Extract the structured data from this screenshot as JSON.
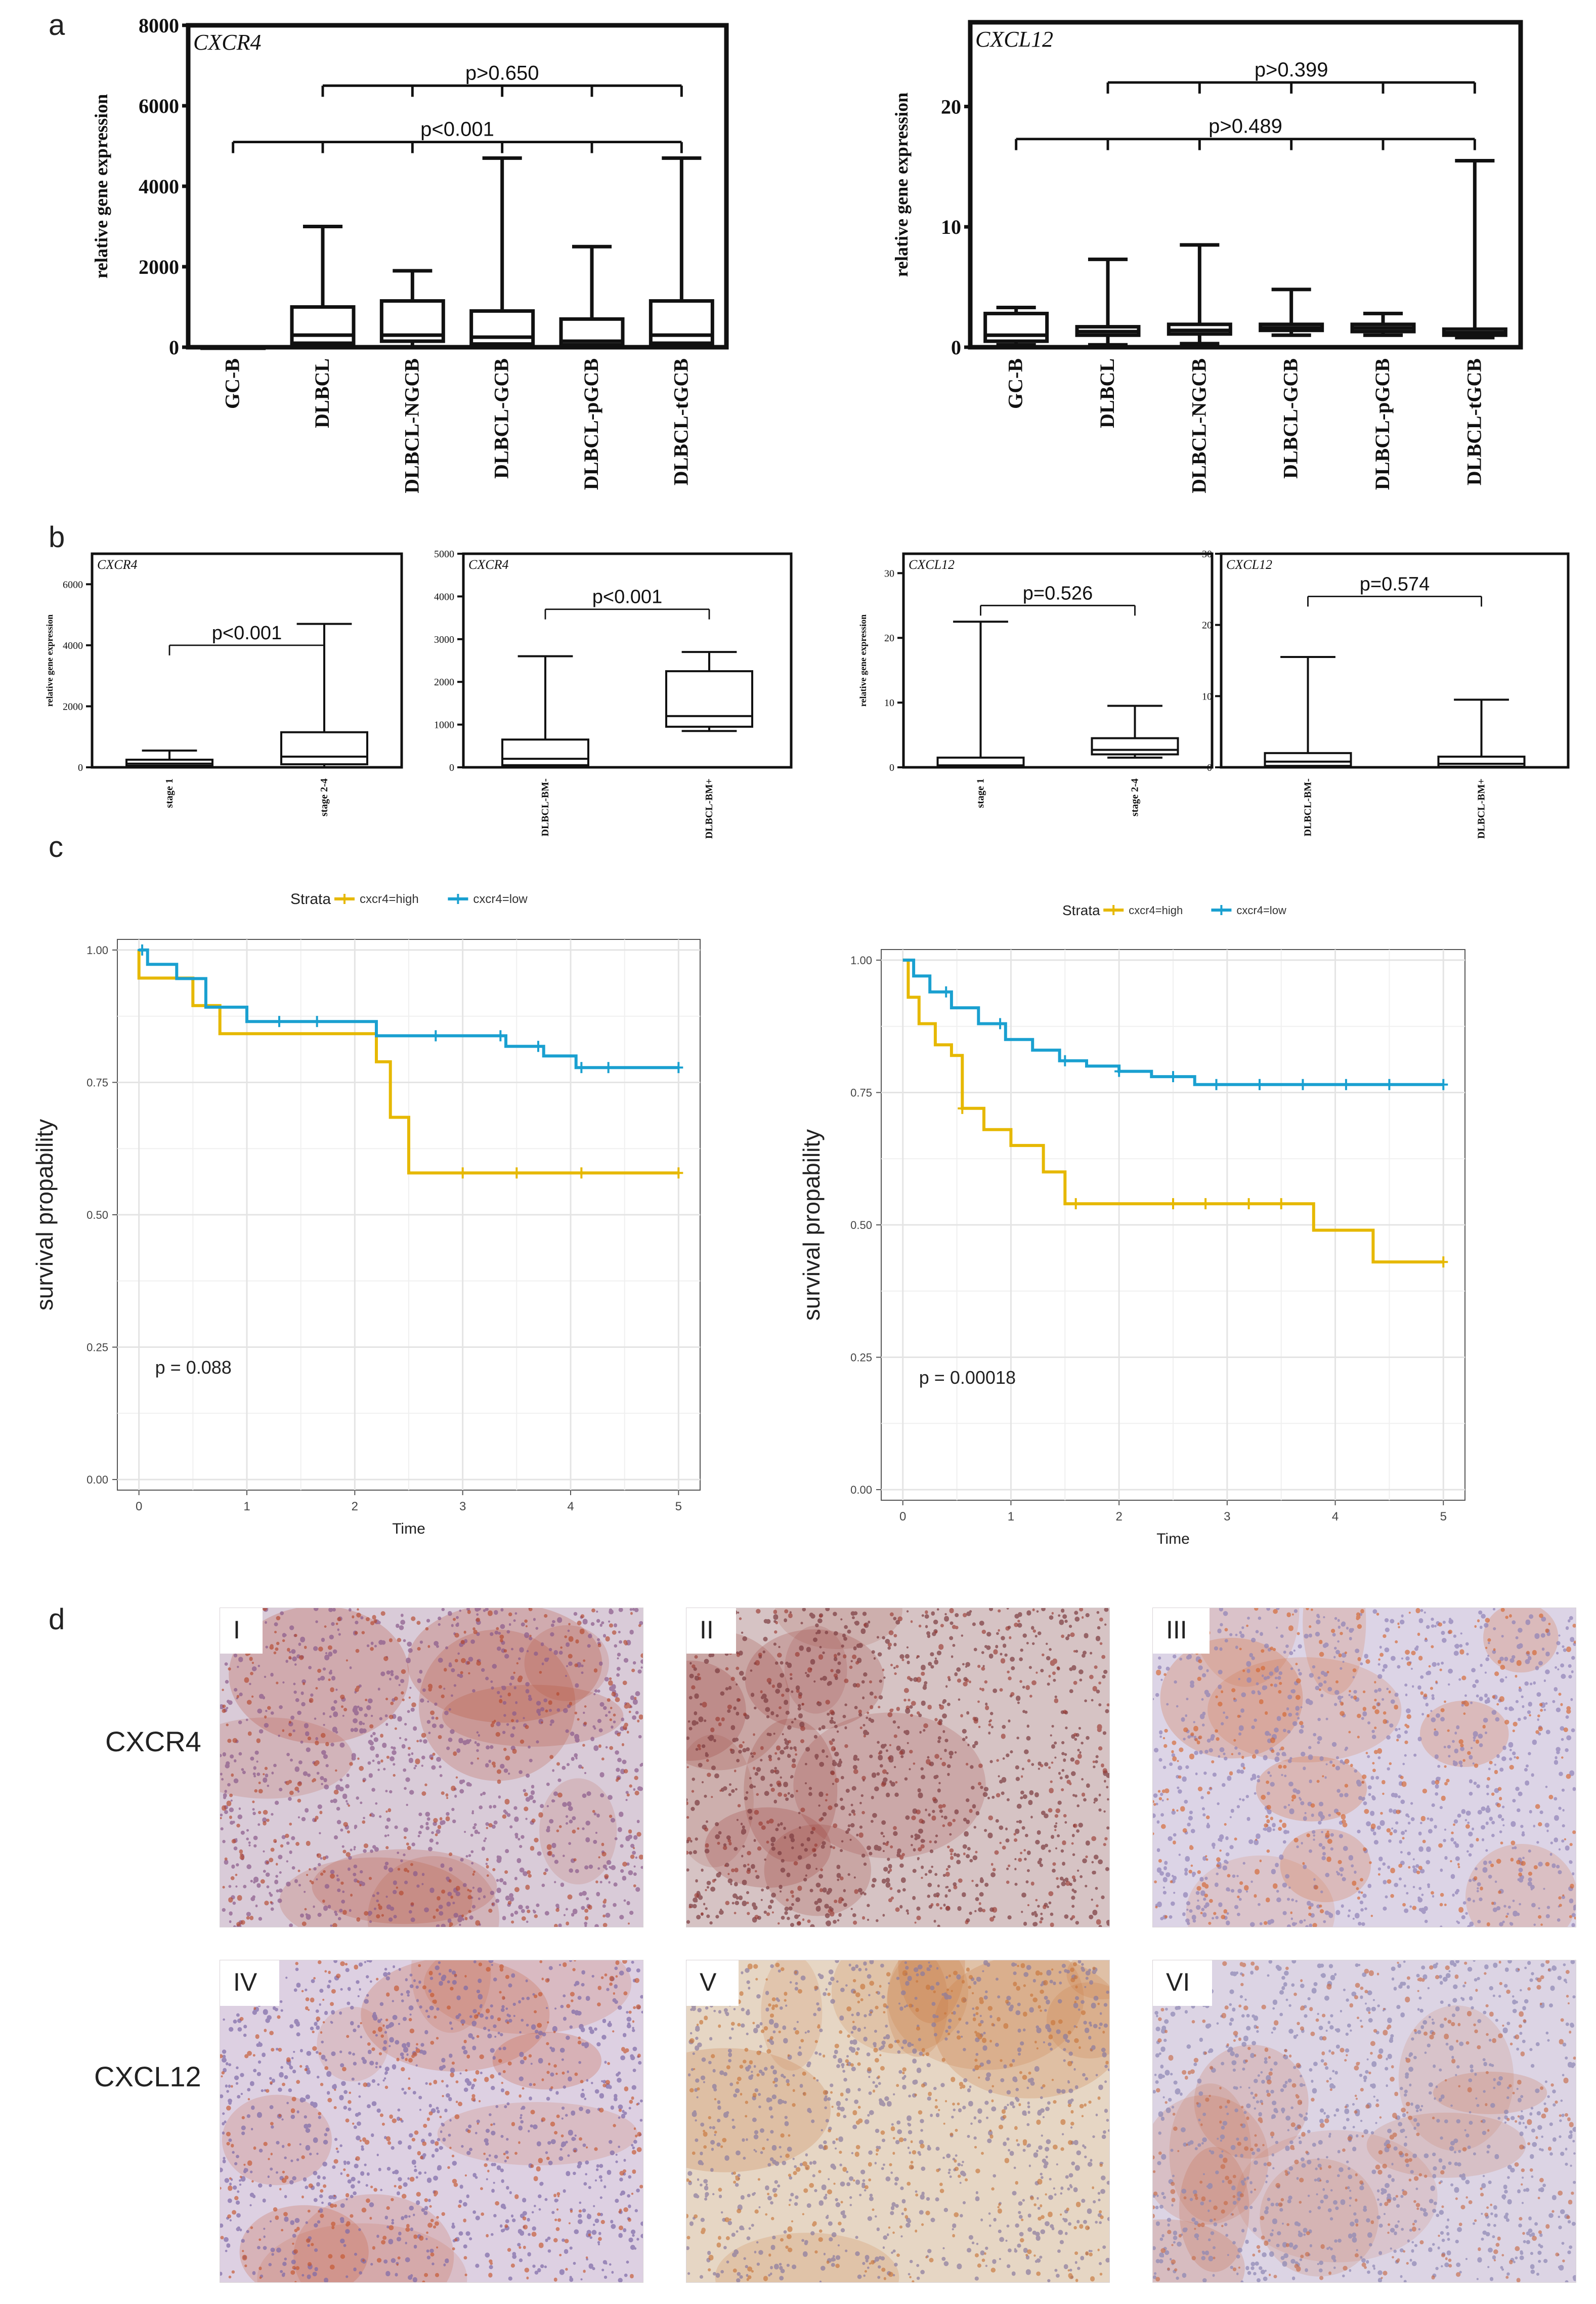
{
  "panels": {
    "a": "a",
    "b": "b",
    "c": "c",
    "d": "d"
  },
  "colors": {
    "ink": "#111111",
    "high": "#e6b800",
    "low": "#1aa0d0",
    "grid": "#e4e4e4"
  },
  "chart_data": [
    {
      "id": "a-cxcr4",
      "type": "box",
      "title": "CXCR4",
      "ylabel": "relative gene expression",
      "ylim": [
        0,
        8000
      ],
      "yticks": [
        0,
        2000,
        4000,
        6000,
        8000
      ],
      "categories": [
        "GC-B",
        "DLBCL",
        "DLBCL-NGCB",
        "DLBCL-GCB",
        "DLBCL-pGCB",
        "DLBCL-tGCB"
      ],
      "boxes": [
        [
          0,
          0,
          0,
          0,
          0
        ],
        [
          0,
          100,
          300,
          1000,
          3000
        ],
        [
          0,
          150,
          300,
          1150,
          1900
        ],
        [
          0,
          80,
          250,
          900,
          4700
        ],
        [
          0,
          60,
          150,
          700,
          2500
        ],
        [
          0,
          100,
          300,
          1150,
          4700
        ]
      ],
      "brackets": [
        {
          "label": "p>0.650",
          "from": 1,
          "to": 5,
          "ticks": [
            1,
            2,
            3,
            4,
            5
          ],
          "y": 6500
        },
        {
          "label": "p<0.001",
          "from": 0,
          "to": 5,
          "ticks": [
            0,
            1,
            2,
            3,
            4,
            5
          ],
          "y": 5100
        }
      ]
    },
    {
      "id": "a-cxcl12",
      "type": "box",
      "title": "CXCL12",
      "ylabel": "relative gene expression",
      "ylim": [
        0,
        27
      ],
      "yticks": [
        0,
        10,
        20
      ],
      "categories": [
        "GC-B",
        "DLBCL",
        "DLBCL-NGCB",
        "DLBCL-GCB",
        "DLBCL-pGCB",
        "DLBCL-tGCB"
      ],
      "boxes": [
        [
          0.2,
          0.5,
          1,
          2.8,
          3.3
        ],
        [
          0.2,
          1,
          1.3,
          1.7,
          7.3
        ],
        [
          0.3,
          1.1,
          1.4,
          1.9,
          8.5
        ],
        [
          1,
          1.4,
          1.6,
          1.9,
          4.8
        ],
        [
          1,
          1.3,
          1.6,
          1.9,
          2.8
        ],
        [
          0.8,
          1,
          1.2,
          1.5,
          15.5
        ]
      ],
      "brackets": [
        {
          "label": "p>0.399",
          "from": 1,
          "to": 5,
          "ticks": [
            1,
            2,
            3,
            4,
            5
          ],
          "y": 22
        },
        {
          "label": "p>0.489",
          "from": 0,
          "to": 5,
          "ticks": [
            0,
            1,
            2,
            3,
            4,
            5
          ],
          "y": 17.3
        }
      ]
    },
    {
      "id": "b-cxcr4-stage",
      "type": "box",
      "title": "CXCR4",
      "ylabel": "relative gene expression",
      "ylim": [
        0,
        7000
      ],
      "yticks": [
        0,
        2000,
        4000,
        6000
      ],
      "categories": [
        "stage 1",
        "stage 2-4"
      ],
      "boxes": [
        [
          0,
          50,
          120,
          250,
          550
        ],
        [
          0,
          100,
          350,
          1150,
          4700
        ]
      ],
      "brackets": [
        {
          "label": "p<0.001",
          "from": 0,
          "to": 1,
          "ticks": [
            0,
            1
          ],
          "y": 4000
        }
      ]
    },
    {
      "id": "b-cxcr4-bm",
      "type": "box",
      "title": "CXCR4",
      "ylabel": "",
      "ylim": [
        0,
        5000
      ],
      "yticks": [
        0,
        1000,
        2000,
        3000,
        4000,
        5000
      ],
      "categories": [
        "DLBCL-BM-",
        "DLBCL-BM+"
      ],
      "boxes": [
        [
          0,
          50,
          200,
          650,
          2600
        ],
        [
          850,
          950,
          1200,
          2250,
          2700
        ]
      ],
      "brackets": [
        {
          "label": "p<0.001",
          "from": 0,
          "to": 1,
          "ticks": [
            0,
            1
          ],
          "y": 3700
        }
      ]
    },
    {
      "id": "b-cxcl12-stage",
      "type": "box",
      "title": "CXCL12",
      "ylabel": "relative gene expression",
      "ylim": [
        0,
        33
      ],
      "yticks": [
        0,
        10,
        20,
        30
      ],
      "categories": [
        "stage 1",
        "stage 2-4"
      ],
      "boxes": [
        [
          0,
          0.1,
          0.3,
          1.5,
          22.5
        ],
        [
          1.5,
          2,
          2.7,
          4.5,
          9.5
        ]
      ],
      "brackets": [
        {
          "label": "p=0.526",
          "from": 0,
          "to": 1,
          "ticks": [
            0,
            1
          ],
          "y": 25
        }
      ]
    },
    {
      "id": "b-cxcl12-bm",
      "type": "box",
      "title": "CXCL12",
      "ylabel": "",
      "ylim": [
        0,
        30
      ],
      "yticks": [
        0,
        10,
        20,
        30
      ],
      "categories": [
        "DLBCL-BM-",
        "DLBCL-BM+"
      ],
      "boxes": [
        [
          0,
          0.2,
          0.8,
          2,
          15.5
        ],
        [
          0,
          0.1,
          0.5,
          1.5,
          9.5
        ]
      ],
      "brackets": [
        {
          "label": "p=0.574",
          "from": 0,
          "to": 1,
          "ticks": [
            0,
            1
          ],
          "y": 24
        }
      ]
    },
    {
      "id": "c-km-1",
      "type": "line",
      "ylabel": "survival propability",
      "xlabel": "Time",
      "xlim": [
        -0.2,
        5.2
      ],
      "ylim": [
        -0.02,
        1.02
      ],
      "xticks": [
        0,
        1,
        2,
        3,
        4,
        5
      ],
      "yticks": [
        0,
        0.25,
        0.5,
        0.75,
        1.0
      ],
      "ytick_labels": [
        "0.00",
        "0.25",
        "0.50",
        "0.75",
        "1.00"
      ],
      "legend_title": "Strata",
      "pvalue": "p = 0.088",
      "series": [
        {
          "name": "cxcr4=high",
          "color_key": "high",
          "x": [
            0,
            0,
            0.5,
            0.5,
            0.75,
            0.75,
            2.2,
            2.2,
            2.33,
            2.33,
            2.5,
            2.5,
            5
          ],
          "y": [
            1.0,
            0.947,
            0.947,
            0.895,
            0.895,
            0.842,
            0.842,
            0.789,
            0.789,
            0.684,
            0.684,
            0.579,
            0.579
          ],
          "censors": [
            3,
            3.5,
            4.1,
            5
          ]
        },
        {
          "name": "cxcr4=low",
          "color_key": "low",
          "x": [
            0,
            0.08,
            0.08,
            0.35,
            0.35,
            0.62,
            0.62,
            1.0,
            1.0,
            2.2,
            2.2,
            3.4,
            3.4,
            3.75,
            3.75,
            4.05,
            4.05,
            5
          ],
          "y": [
            1.0,
            1.0,
            0.973,
            0.973,
            0.946,
            0.946,
            0.892,
            0.892,
            0.865,
            0.865,
            0.838,
            0.838,
            0.818,
            0.818,
            0.8,
            0.8,
            0.778,
            0.778
          ],
          "censors": [
            0.03,
            1.3,
            1.65,
            2.75,
            3.35,
            3.7,
            4.1,
            4.35,
            5
          ]
        }
      ]
    },
    {
      "id": "c-km-2",
      "type": "line",
      "ylabel": "survival propability",
      "xlabel": "Time",
      "xlim": [
        -0.2,
        5.2
      ],
      "ylim": [
        -0.02,
        1.02
      ],
      "xticks": [
        0,
        1,
        2,
        3,
        4,
        5
      ],
      "yticks": [
        0,
        0.25,
        0.5,
        0.75,
        1.0
      ],
      "ytick_labels": [
        "0.00",
        "0.25",
        "0.50",
        "0.75",
        "1.00"
      ],
      "legend_title": "Strata",
      "pvalue": "p = 0.00018",
      "series": [
        {
          "name": "cxcr4=high",
          "color_key": "high",
          "x": [
            0,
            0.05,
            0.05,
            0.15,
            0.15,
            0.3,
            0.3,
            0.45,
            0.45,
            0.55,
            0.55,
            0.75,
            0.75,
            1.0,
            1.0,
            1.3,
            1.3,
            1.5,
            1.5,
            3.8,
            3.8,
            4.35,
            4.35,
            5
          ],
          "y": [
            1.0,
            1.0,
            0.93,
            0.93,
            0.88,
            0.88,
            0.84,
            0.84,
            0.82,
            0.82,
            0.72,
            0.72,
            0.68,
            0.68,
            0.65,
            0.65,
            0.6,
            0.6,
            0.54,
            0.54,
            0.49,
            0.49,
            0.43,
            0.43
          ],
          "censors": [
            0.55,
            1.6,
            2.5,
            2.8,
            3.2,
            3.5,
            5
          ]
        },
        {
          "name": "cxcr4=low",
          "color_key": "low",
          "x": [
            0,
            0.1,
            0.1,
            0.25,
            0.25,
            0.45,
            0.45,
            0.7,
            0.7,
            0.95,
            0.95,
            1.2,
            1.2,
            1.45,
            1.45,
            1.7,
            1.7,
            2.0,
            2.0,
            2.3,
            2.3,
            2.7,
            2.7,
            5
          ],
          "y": [
            1.0,
            1.0,
            0.97,
            0.97,
            0.94,
            0.94,
            0.91,
            0.91,
            0.88,
            0.88,
            0.85,
            0.85,
            0.83,
            0.83,
            0.81,
            0.81,
            0.8,
            0.8,
            0.79,
            0.79,
            0.78,
            0.78,
            0.765,
            0.765
          ],
          "censors": [
            0.4,
            0.9,
            1.5,
            2.0,
            2.5,
            2.9,
            3.3,
            3.7,
            4.1,
            4.5,
            5
          ]
        }
      ]
    }
  ],
  "micrographs": {
    "row_labels": [
      "CXCR4",
      "CXCL12"
    ],
    "tiles": [
      {
        "label": "I",
        "base": "#d9cbd8",
        "dot": "#8a5a8c",
        "stain": "#b4472c"
      },
      {
        "label": "II",
        "base": "#d6c3c4",
        "dot": "#7a3a3e",
        "stain": "#9a3a32"
      },
      {
        "label": "III",
        "base": "#dcd4e6",
        "dot": "#8e82b6",
        "stain": "#d4642e"
      },
      {
        "label": "IV",
        "base": "#ddd0e2",
        "dot": "#7e6aa8",
        "stain": "#c4542c"
      },
      {
        "label": "V",
        "base": "#e6d6c4",
        "dot": "#8a7aa0",
        "stain": "#c8743a"
      },
      {
        "label": "VI",
        "base": "#dcd4e4",
        "dot": "#8c86b4",
        "stain": "#c66c48"
      }
    ]
  }
}
